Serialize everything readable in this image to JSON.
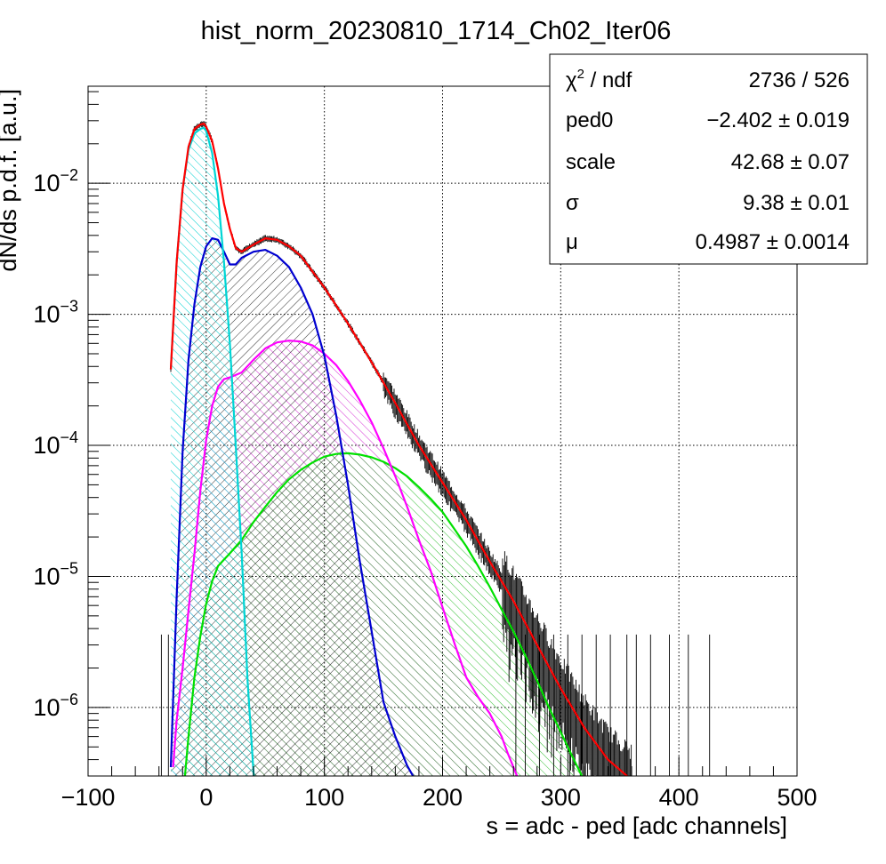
{
  "chart_data": {
    "type": "line",
    "title": "hist_norm_20230810_1714_Ch02_Iter06",
    "xlabel": "s = adc - ped [adc channels]",
    "ylabel": "dN/ds p.d.f. [a.u.]",
    "xlim": [
      -100,
      500
    ],
    "ylim": [
      3e-07,
      0.055
    ],
    "y_scale": "log",
    "grid": true,
    "x_ticks": [
      {
        "value": -100,
        "label": "−100"
      },
      {
        "value": 0,
        "label": "0"
      },
      {
        "value": 100,
        "label": "100"
      },
      {
        "value": 200,
        "label": "200"
      },
      {
        "value": 300,
        "label": "300"
      },
      {
        "value": 400,
        "label": "400"
      },
      {
        "value": 500,
        "label": "500"
      }
    ],
    "y_ticks": [
      {
        "value": 1e-06,
        "base": "10",
        "exp": "−6"
      },
      {
        "value": 1e-05,
        "base": "10",
        "exp": "−5"
      },
      {
        "value": 0.0001,
        "base": "10",
        "exp": "−4"
      },
      {
        "value": 0.001,
        "base": "10",
        "exp": "−3"
      },
      {
        "value": 0.01,
        "base": "10",
        "exp": "−2"
      }
    ],
    "stats_box": {
      "placement": "top-right",
      "rows": [
        {
          "label_base": "χ",
          "label_sup": "2",
          "label_rest": " / ndf",
          "value": "2736 / 526"
        },
        {
          "label_base": "ped0",
          "label_sup": "",
          "label_rest": "",
          "value": "−2.402 ± 0.019"
        },
        {
          "label_base": "scale",
          "label_sup": "",
          "label_rest": "",
          "value": "42.68 ± 0.07"
        },
        {
          "label_base": "σ",
          "label_sup": "",
          "label_rest": "",
          "value": "9.38 ± 0.01"
        },
        {
          "label_base": "μ",
          "label_sup": "",
          "label_rest": "",
          "value": "0.4987 ± 0.0014"
        }
      ]
    },
    "series": [
      {
        "color": "#ff0000",
        "x": [
          -30,
          -25,
          -20,
          -15,
          -10,
          -5,
          -2,
          0,
          5,
          10,
          15,
          20,
          25,
          30,
          40,
          50,
          60,
          70,
          80,
          100,
          120,
          140,
          160,
          180,
          200,
          220,
          240,
          260,
          280,
          300,
          320,
          340,
          360
        ],
        "y": [
          0.00038,
          0.0025,
          0.009,
          0.019,
          0.026,
          0.028,
          0.0285,
          0.027,
          0.021,
          0.013,
          0.007,
          0.0045,
          0.0032,
          0.003,
          0.0034,
          0.0038,
          0.0037,
          0.0033,
          0.0028,
          0.0016,
          0.00085,
          0.00043,
          0.00021,
          0.0001,
          5.2e-05,
          2.7e-05,
          1.3e-05,
          6.5e-06,
          3e-06,
          1.4e-06,
          7e-07,
          4e-07,
          2.8e-07
        ]
      },
      {
        "color": "#00d5d5",
        "fill": "#00d5d5",
        "x": [
          -30,
          -25,
          -20,
          -15,
          -10,
          -5,
          -2,
          0,
          5,
          10,
          15,
          20,
          25,
          30,
          35,
          40,
          42
        ],
        "y": [
          0.00038,
          0.0025,
          0.009,
          0.018,
          0.024,
          0.026,
          0.0265,
          0.025,
          0.017,
          0.008,
          0.0025,
          0.0006,
          0.0001,
          1.5e-05,
          1.6e-06,
          3.2e-07,
          2e-07
        ]
      },
      {
        "color": "#0000d0",
        "fill": "#000000",
        "x": [
          -30,
          -25,
          -20,
          -15,
          -10,
          -5,
          0,
          5,
          10,
          15,
          20,
          25,
          30,
          40,
          50,
          60,
          70,
          80,
          90,
          100,
          110,
          120,
          130,
          140,
          150,
          160,
          170,
          175,
          178
        ],
        "y": [
          3.5e-07,
          7e-06,
          9e-05,
          0.00045,
          0.0012,
          0.0023,
          0.0033,
          0.0038,
          0.0037,
          0.003,
          0.0024,
          0.0024,
          0.0027,
          0.003,
          0.0031,
          0.0028,
          0.0023,
          0.0016,
          0.001,
          0.00048,
          0.00017,
          5e-05,
          1.3e-05,
          3.8e-06,
          1.1e-06,
          6e-07,
          3.6e-07,
          3e-07,
          2.8e-07
        ]
      },
      {
        "color": "#ff00ff",
        "fill": "#cc00cc",
        "x": [
          -28,
          -25,
          -20,
          -15,
          -10,
          -5,
          0,
          5,
          10,
          15,
          20,
          30,
          40,
          50,
          60,
          70,
          80,
          90,
          100,
          110,
          120,
          130,
          140,
          150,
          160,
          170,
          180,
          190,
          200,
          210,
          220,
          230,
          240,
          250,
          255,
          260,
          263
        ],
        "y": [
          3.5e-07,
          8e-07,
          2e-06,
          5.5e-06,
          1.5e-05,
          4.5e-05,
          0.00011,
          0.0002,
          0.00028,
          0.00032,
          0.00033,
          0.00036,
          0.00045,
          0.00055,
          0.00061,
          0.00063,
          0.00062,
          0.00058,
          0.0005,
          0.00041,
          0.00031,
          0.00022,
          0.00015,
          9.5e-05,
          5.8e-05,
          3.4e-05,
          1.9e-05,
          1.1e-05,
          5.8e-06,
          3.1e-06,
          1.7e-06,
          1.2e-06,
          9e-07,
          6e-07,
          4.5e-07,
          3.5e-07,
          3e-07
        ]
      },
      {
        "color": "#00e000",
        "fill": "#00b000",
        "x": [
          -18,
          -15,
          -10,
          -5,
          0,
          5,
          10,
          20,
          30,
          40,
          50,
          60,
          70,
          80,
          90,
          100,
          110,
          120,
          130,
          140,
          150,
          160,
          170,
          180,
          190,
          200,
          210,
          220,
          230,
          240,
          250,
          260,
          270,
          280,
          290,
          300,
          310,
          318
        ],
        "y": [
          3e-07,
          6e-07,
          1.7e-06,
          3.5e-06,
          6.2e-06,
          9.2e-06,
          1.2e-05,
          1.5e-05,
          1.9e-05,
          2.6e-05,
          3.4e-05,
          4.4e-05,
          5.5e-05,
          6.5e-05,
          7.4e-05,
          8.2e-05,
          8.6e-05,
          8.7e-05,
          8.5e-05,
          8.1e-05,
          7.5e-05,
          6.7e-05,
          5.8e-05,
          4.8e-05,
          3.9e-05,
          3.1e-05,
          2.3e-05,
          1.7e-05,
          1.2e-05,
          8.3e-06,
          5.6e-06,
          3.8e-06,
          2.5e-06,
          1.6e-06,
          1e-06,
          6.5e-07,
          4.2e-07,
          3e-07
        ]
      }
    ]
  }
}
